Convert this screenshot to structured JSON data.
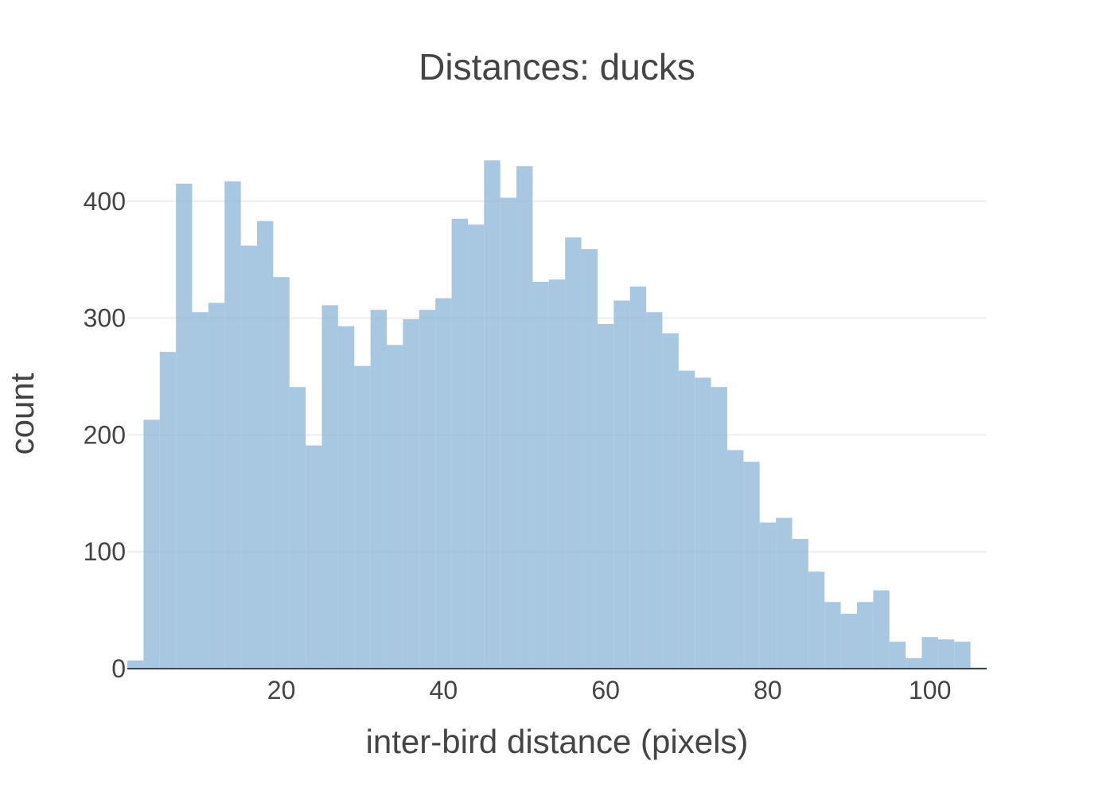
{
  "chart_data": {
    "type": "bar",
    "subtype": "histogram",
    "title": "Distances: ducks",
    "xlabel": "inter-bird distance (pixels)",
    "ylabel": "count",
    "xlim": [
      1,
      107
    ],
    "ylim": [
      0,
      470
    ],
    "x_ticks": [
      20,
      40,
      60,
      80,
      100
    ],
    "x_tick_labels": [
      "20",
      "40",
      "60",
      "80",
      "100"
    ],
    "y_ticks": [
      0,
      100,
      200,
      300,
      400
    ],
    "y_tick_labels": [
      "0",
      "100",
      "200",
      "300",
      "400"
    ],
    "grid": "horizontal",
    "bar_color": "#8ab6d6",
    "bin_width": 2,
    "bin_starts": [
      1,
      3,
      5,
      7,
      9,
      11,
      13,
      15,
      17,
      19,
      21,
      23,
      25,
      27,
      29,
      31,
      33,
      35,
      37,
      39,
      41,
      43,
      45,
      47,
      49,
      51,
      53,
      55,
      57,
      59,
      61,
      63,
      65,
      67,
      69,
      71,
      73,
      75,
      77,
      79,
      81,
      83,
      85,
      87,
      89,
      91,
      93,
      95,
      97,
      99,
      101,
      103,
      105
    ],
    "values": [
      7,
      213,
      271,
      415,
      305,
      313,
      417,
      362,
      383,
      335,
      241,
      191,
      311,
      293,
      259,
      307,
      277,
      299,
      307,
      317,
      385,
      380,
      435,
      403,
      430,
      331,
      333,
      369,
      359,
      295,
      315,
      327,
      305,
      287,
      255,
      249,
      241,
      187,
      177,
      125,
      129,
      111,
      83,
      57,
      47,
      57,
      67,
      23,
      9,
      27,
      25,
      23,
      1
    ]
  }
}
